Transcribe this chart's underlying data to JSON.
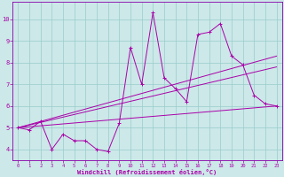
{
  "xlabel": "Windchill (Refroidissement éolien,°C)",
  "background_color": "#cce8e8",
  "grid_color": "#99cccc",
  "line_color": "#aa00aa",
  "spine_color": "#8800aa",
  "x_values": [
    0,
    1,
    2,
    3,
    4,
    5,
    6,
    7,
    8,
    9,
    10,
    11,
    12,
    13,
    14,
    15,
    16,
    17,
    18,
    19,
    20,
    21,
    22,
    23
  ],
  "y_main": [
    5.0,
    4.9,
    5.3,
    4.0,
    4.7,
    4.4,
    4.4,
    4.0,
    3.9,
    5.2,
    8.7,
    7.0,
    10.3,
    7.3,
    6.8,
    6.2,
    9.3,
    9.4,
    9.8,
    8.3,
    7.9,
    6.5,
    6.1,
    6.0
  ],
  "trend1_start": 5.0,
  "trend1_end": 6.0,
  "trend2_start": 5.0,
  "trend2_end": 7.8,
  "trend3_start": 5.0,
  "trend3_end": 8.3,
  "ylim": [
    3.5,
    10.8
  ],
  "xlim": [
    -0.5,
    23.5
  ],
  "yticks": [
    4,
    5,
    6,
    7,
    8,
    9,
    10
  ],
  "xticks": [
    0,
    1,
    2,
    3,
    4,
    5,
    6,
    7,
    8,
    9,
    10,
    11,
    12,
    13,
    14,
    15,
    16,
    17,
    18,
    19,
    20,
    21,
    22,
    23
  ]
}
